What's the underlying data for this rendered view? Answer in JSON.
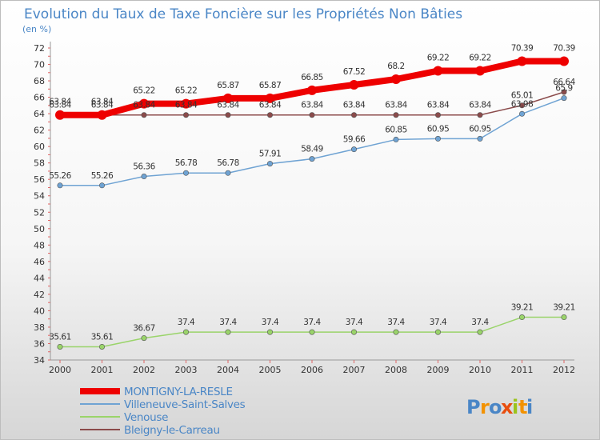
{
  "chart_data": {
    "type": "line",
    "title": "Evolution du Taux de Taxe Foncière sur les Propriétés Non Bâties",
    "unit_label": "(en %)",
    "x": [
      "2000",
      "2001",
      "2002",
      "2003",
      "2004",
      "2005",
      "2006",
      "2007",
      "2008",
      "2009",
      "2010",
      "2011",
      "2012"
    ],
    "ylim": [
      34,
      72
    ],
    "yticks": [
      34,
      36,
      38,
      40,
      42,
      44,
      46,
      48,
      50,
      52,
      54,
      56,
      58,
      60,
      62,
      64,
      66,
      68,
      70,
      72
    ],
    "grid": false,
    "legend_position": "bottom-left",
    "series": [
      {
        "name": "MONTIGNY-LA-RESLE",
        "color": "#ee0000",
        "values": [
          63.84,
          63.84,
          65.22,
          65.22,
          65.87,
          65.87,
          66.85,
          67.52,
          68.2,
          69.22,
          69.22,
          70.39,
          70.39
        ],
        "labels": [
          "63.84",
          "63.84",
          "65.22",
          "65.22",
          "65.87",
          "65.87",
          "66.85",
          "67.52",
          "68.2",
          "69.22",
          "69.22",
          "70.39",
          "70.39"
        ]
      },
      {
        "name": "Villeneuve-Saint-Salves",
        "color": "#6fa3d3",
        "values": [
          55.26,
          55.26,
          56.36,
          56.78,
          56.78,
          57.91,
          58.49,
          59.66,
          60.85,
          60.95,
          60.95,
          63.98,
          65.9
        ],
        "labels": [
          "55.26",
          "55.26",
          "56.36",
          "56.78",
          "56.78",
          "57.91",
          "58.49",
          "59.66",
          "60.85",
          "60.95",
          "60.95",
          "63.98",
          "65.9"
        ]
      },
      {
        "name": "Venouse",
        "color": "#9ad46a",
        "values": [
          35.61,
          35.61,
          36.67,
          37.4,
          37.4,
          37.4,
          37.4,
          37.4,
          37.4,
          37.4,
          37.4,
          39.21,
          39.21
        ],
        "labels": [
          "35.61",
          "35.61",
          "36.67",
          "37.4",
          "37.4",
          "37.4",
          "37.4",
          "37.4",
          "37.4",
          "37.4",
          "37.4",
          "39.21",
          "39.21"
        ]
      },
      {
        "name": "Bleigny-le-Carreau",
        "color": "#8b4b4b",
        "values": [
          63.84,
          63.84,
          63.84,
          63.84,
          63.84,
          63.84,
          63.84,
          63.84,
          63.84,
          63.84,
          63.84,
          65.01,
          66.64
        ],
        "labels": [
          "63.84",
          "63.84",
          "63.84",
          "63.84",
          "63.84",
          "63.84",
          "63.84",
          "63.84",
          "63.84",
          "63.84",
          "63.84",
          "65.01",
          "66.64"
        ]
      }
    ]
  },
  "brand": {
    "letters": [
      "P",
      "r",
      "o",
      "x",
      "i",
      "t",
      "i"
    ],
    "colors": [
      "#4a86c6",
      "#f39200",
      "#4a86c6",
      "#e84e0f",
      "#9bc31c",
      "#f39200",
      "#4a86c6"
    ]
  }
}
